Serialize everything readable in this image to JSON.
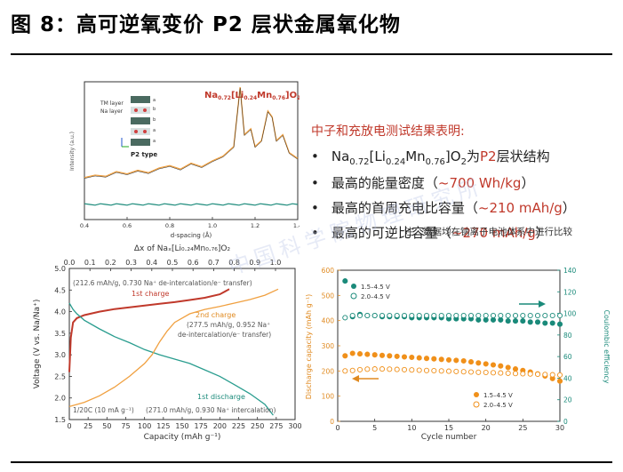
{
  "title": "图 8：高可逆氧变价 P2 层状金属氧化物",
  "top_chart": {
    "formula_prefix": "Na",
    "formula_sub1": "0.72",
    "formula_mid": "[Li",
    "formula_sub2": "0.24",
    "formula_mid2": "Mn",
    "formula_sub3": "0.76",
    "formula_suffix": "]O",
    "formula_sub4": "2",
    "ylabel": "Intensity (a.u.)",
    "xlabel": "d-spacing (Å)",
    "inset": {
      "tm_layer": "TM layer",
      "na_layer": "Na layer",
      "type": "P2 type",
      "labels": [
        "a",
        "b",
        "b",
        "a",
        "a",
        "b",
        "b",
        "a"
      ]
    }
  },
  "findings": {
    "header": "中子和充放电测试结果表明:",
    "item1_a": "Na",
    "item1_s1": "0.72",
    "item1_b": "[Li",
    "item1_s2": "0.24",
    "item1_c": "Mn",
    "item1_s3": "0.76",
    "item1_d": "]O",
    "item1_s4": "2",
    "item1_e": "为",
    "item1_f": "P2",
    "item1_g": "层状结构",
    "item2_a": "最高的能量密度（",
    "item2_b": "~700 Wh/kg",
    "item2_c": "）",
    "item3_a": "最高的首周充电比容量（",
    "item3_b": "~210 mAh/g",
    "item3_c": "）",
    "item4_a": "最高的可逆比容量（",
    "item4_b": "~270 mAh/g",
    "item4_c": "）",
    "note": "注：数据均在钠离子电池体系中进行比较"
  },
  "watermark": "中国科学院物理研究所",
  "chart_data": [
    {
      "type": "line",
      "title": "",
      "xlabel": "d-spacing (Å)",
      "ylabel": "Intensity (a.u.)",
      "xlim": [
        0.4,
        1.4
      ],
      "xticks": [
        "0.4",
        "0.6",
        "0.8",
        "1.0",
        "1.2",
        "1.4"
      ],
      "series": [
        {
          "x": [
            0.4,
            0.45,
            0.5,
            0.55,
            0.6,
            0.65,
            0.7,
            0.75,
            0.8,
            0.85,
            0.9,
            0.95,
            1.0,
            1.05,
            1.1,
            1.13,
            1.15,
            1.18,
            1.2,
            1.23,
            1.26,
            1.28,
            1.3,
            1.33,
            1.36,
            1.4
          ],
          "values": [
            4,
            6,
            5,
            9,
            7,
            10,
            8,
            12,
            14,
            11,
            16,
            13,
            18,
            22,
            30,
            80,
            40,
            45,
            30,
            35,
            60,
            55,
            35,
            40,
            25,
            20
          ]
        }
      ]
    },
    {
      "type": "line",
      "title": "",
      "xlabel": "Capacity (mAh g⁻¹)",
      "ylabel": "Voltage (V vs. Na/Na⁺)",
      "top_xlabel": "Δx of Naₓ[Li₀.₂₄Mn₀.₇₆]O₂",
      "xlim": [
        0,
        300
      ],
      "ylim": [
        1.5,
        5.0
      ],
      "xticks": [
        "0",
        "25",
        "50",
        "75",
        "100",
        "125",
        "150",
        "175",
        "200",
        "225",
        "250",
        "275",
        "300"
      ],
      "yticks": [
        "1.5",
        "2.0",
        "2.5",
        "3.0",
        "3.5",
        "4.0",
        "4.5",
        "5.0"
      ],
      "top_xticks": [
        "0.0",
        "0.1",
        "0.2",
        "0.3",
        "0.4",
        "0.5",
        "0.6",
        "0.7",
        "0.8",
        "0.9",
        "1.0"
      ],
      "annotations": {
        "first_charge_info": "(212.6 mAh/g, 0.730 Na⁺ de-intercalation/e⁻ transfer)",
        "first_charge_label": "1st charge",
        "second_charge_label": "2nd charge",
        "second_charge_info1": "(277.5 mAh/g, 0.952 Na⁺",
        "second_charge_info2": "de-intercalation/e⁻ transfer)",
        "first_discharge_label": "1st discharge",
        "first_discharge_info": "(271.0 mAh/g, 0.930 Na⁺ intercalation)",
        "rate": "1/20C (10 mA g⁻¹)"
      },
      "series": [
        {
          "name": "1st charge",
          "color": "#c0392b",
          "x": [
            0,
            2,
            5,
            10,
            20,
            40,
            60,
            80,
            100,
            120,
            140,
            160,
            180,
            200,
            212.6
          ],
          "values": [
            2.6,
            3.4,
            3.75,
            3.85,
            3.92,
            4.0,
            4.06,
            4.1,
            4.14,
            4.18,
            4.22,
            4.27,
            4.32,
            4.4,
            4.52
          ]
        },
        {
          "name": "1st discharge",
          "color": "#2a9d8f",
          "x": [
            0,
            5,
            10,
            20,
            40,
            60,
            80,
            100,
            120,
            140,
            160,
            180,
            200,
            220,
            240,
            260,
            271
          ],
          "values": [
            4.2,
            4.05,
            3.95,
            3.8,
            3.6,
            3.42,
            3.28,
            3.12,
            3.0,
            2.9,
            2.8,
            2.65,
            2.5,
            2.3,
            2.1,
            1.85,
            1.6
          ]
        },
        {
          "name": "2nd charge",
          "color": "#f0a040",
          "x": [
            0,
            10,
            20,
            40,
            60,
            80,
            100,
            110,
            120,
            130,
            140,
            160,
            180,
            200,
            220,
            240,
            260,
            277.5
          ],
          "values": [
            1.8,
            1.85,
            1.9,
            2.05,
            2.25,
            2.5,
            2.8,
            3.0,
            3.3,
            3.55,
            3.75,
            3.95,
            4.05,
            4.12,
            4.2,
            4.28,
            4.38,
            4.52
          ]
        }
      ]
    },
    {
      "type": "scatter",
      "title": "",
      "xlabel": "Cycle number",
      "ylabel": "Discharge capacity (mAh g⁻¹)",
      "ylabel2": "Coulombic efficiency",
      "xlim": [
        0,
        30
      ],
      "ylim": [
        0,
        600
      ],
      "y2lim": [
        0,
        140
      ],
      "xticks": [
        "0",
        "5",
        "10",
        "15",
        "20",
        "25",
        "30"
      ],
      "yticks": [
        "0",
        "100",
        "200",
        "300",
        "400",
        "500",
        "600"
      ],
      "y2ticks": [
        "0",
        "20",
        "40",
        "60",
        "80",
        "100",
        "120",
        "140"
      ],
      "legend_top": [
        "1.5–4.5 V",
        "2.0–4.5 V"
      ],
      "legend_bottom": [
        "1.5–4.5 V",
        "2.0–4.5 V"
      ],
      "series": [
        {
          "name": "1.5–4.5 V",
          "kind": "capacity",
          "filled": true,
          "color": "#f0901a",
          "x": [
            1,
            2,
            3,
            4,
            5,
            6,
            7,
            8,
            9,
            10,
            11,
            12,
            13,
            14,
            15,
            16,
            17,
            18,
            19,
            20,
            21,
            22,
            23,
            24,
            25,
            26,
            27,
            28,
            29,
            30
          ],
          "values": [
            260,
            270,
            268,
            266,
            264,
            262,
            260,
            258,
            256,
            254,
            252,
            250,
            248,
            246,
            244,
            242,
            240,
            236,
            232,
            228,
            224,
            220,
            214,
            208,
            202,
            196,
            188,
            180,
            170,
            160
          ]
        },
        {
          "name": "2.0–4.5 V",
          "kind": "capacity",
          "filled": false,
          "color": "#f0901a",
          "x": [
            1,
            2,
            3,
            4,
            5,
            6,
            7,
            8,
            9,
            10,
            11,
            12,
            13,
            14,
            15,
            16,
            17,
            18,
            19,
            20,
            21,
            22,
            23,
            24,
            25,
            26,
            27,
            28,
            29,
            30
          ],
          "values": [
            200,
            202,
            205,
            207,
            208,
            208,
            207,
            206,
            205,
            204,
            203,
            202,
            201,
            200,
            199,
            198,
            197,
            196,
            195,
            194,
            193,
            192,
            191,
            190,
            189,
            188,
            187,
            186,
            185,
            184
          ]
        },
        {
          "name": "1.5–4.5 V",
          "kind": "efficiency",
          "filled": true,
          "color": "#1a8a7a",
          "x": [
            1,
            2,
            3,
            4,
            5,
            6,
            7,
            8,
            9,
            10,
            11,
            12,
            13,
            14,
            15,
            16,
            17,
            18,
            19,
            20,
            21,
            22,
            23,
            24,
            25,
            26,
            27,
            28,
            29,
            30
          ],
          "values": [
            130,
            97,
            99,
            98,
            98,
            97,
            97,
            97,
            97,
            96,
            96,
            96,
            96,
            96,
            95,
            95,
            95,
            95,
            94,
            94,
            94,
            94,
            93,
            93,
            93,
            92,
            92,
            91,
            91,
            90
          ]
        },
        {
          "name": "2.0–4.5 V",
          "kind": "efficiency",
          "filled": false,
          "color": "#1a8a7a",
          "x": [
            1,
            2,
            3,
            4,
            5,
            6,
            7,
            8,
            9,
            10,
            11,
            12,
            13,
            14,
            15,
            16,
            17,
            18,
            19,
            20,
            21,
            22,
            23,
            24,
            25,
            26,
            27,
            28,
            29,
            30
          ],
          "values": [
            96,
            98,
            98,
            98,
            98,
            98,
            98,
            98,
            98,
            98,
            98,
            98,
            98,
            98,
            98,
            98,
            98,
            98,
            98,
            98,
            98,
            98,
            98,
            98,
            98,
            98,
            98,
            98,
            98,
            98
          ]
        }
      ]
    }
  ]
}
